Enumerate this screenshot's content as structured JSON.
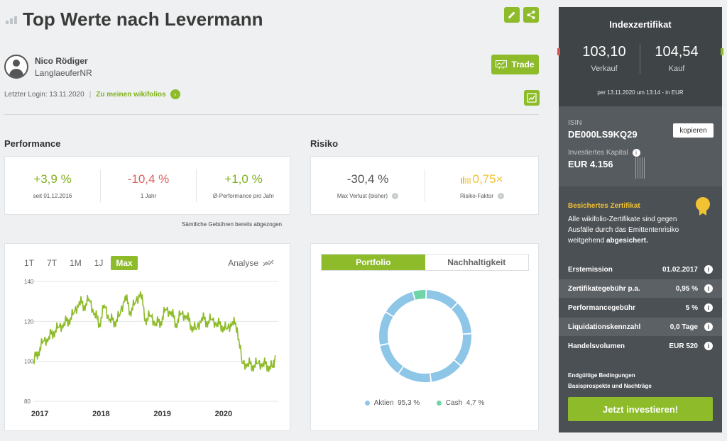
{
  "header": {
    "title": "Top Werte nach Levermann"
  },
  "author": {
    "name": "Nico Rödiger",
    "handle": "LanglaeuferNR"
  },
  "trade_label": "Trade",
  "login": {
    "text": "Letzter Login: 13.11.2020",
    "separator": "|",
    "link": "Zu meinen wikifolios"
  },
  "performance": {
    "title": "Performance",
    "items": [
      {
        "value": "+3,9 %",
        "label": "seit 01.12.2016",
        "color": "#7fb11e"
      },
      {
        "value": "-10,4 %",
        "label": "1 Jahr",
        "color": "#e06060"
      },
      {
        "value": "+1,0 %",
        "label": "Ø-Performance pro Jahr",
        "color": "#7fb11e"
      }
    ],
    "fees_note": "Sämtliche Gebühren bereits abgezogen"
  },
  "risiko": {
    "title": "Risiko",
    "max_verlust": {
      "value": "-30,4 %",
      "label": "Max Verlust (bisher)"
    },
    "faktor": {
      "value": "0,75×",
      "label": "Risiko-Faktor",
      "color": "#f1c232"
    }
  },
  "chart": {
    "tabs": [
      "1T",
      "7T",
      "1M",
      "1J",
      "Max"
    ],
    "active_tab": "Max",
    "analyse_label": "Analyse"
  },
  "chart_data": {
    "type": "line",
    "title": "",
    "xlabel": "",
    "ylabel": "",
    "x_ticks": [
      "2017",
      "2018",
      "2019",
      "2020"
    ],
    "y_ticks": [
      140,
      120,
      100,
      80
    ],
    "ylim": [
      80,
      140
    ],
    "grid": true,
    "series": [
      {
        "color": "#8dbb2a",
        "x": [
          2016.92,
          2017.0,
          2017.08,
          2017.17,
          2017.25,
          2017.33,
          2017.42,
          2017.5,
          2017.58,
          2017.67,
          2017.75,
          2017.83,
          2017.92,
          2018.0,
          2018.08,
          2018.17,
          2018.25,
          2018.33,
          2018.42,
          2018.5,
          2018.58,
          2018.67,
          2018.75,
          2018.83,
          2018.92,
          2019.0,
          2019.08,
          2019.17,
          2019.25,
          2019.33,
          2019.42,
          2019.5,
          2019.58,
          2019.67,
          2019.75,
          2019.83,
          2019.92,
          2020.0,
          2020.08,
          2020.17,
          2020.25,
          2020.33,
          2020.42,
          2020.5,
          2020.58,
          2020.67,
          2020.75,
          2020.83,
          2020.87
        ],
        "values": [
          100,
          105,
          110,
          112,
          115,
          117,
          119,
          121,
          124,
          130,
          128,
          131,
          124,
          119,
          128,
          121,
          120,
          123,
          133,
          125,
          129,
          135,
          121,
          123,
          119,
          120,
          126,
          125,
          119,
          124,
          123,
          118,
          116,
          122,
          120,
          121,
          119,
          118,
          116,
          120,
          117,
          99,
          99,
          98,
          99,
          99,
          98,
          97,
          103
        ]
      }
    ]
  },
  "portfolio": {
    "tab_active": "Portfolio",
    "tab_other": "Nachhaltigkeit",
    "legend": [
      {
        "name": "Aktien",
        "value": "95,3 %",
        "color": "#8ec6e8"
      },
      {
        "name": "Cash",
        "value": "4,7 %",
        "color": "#6fd4a8"
      }
    ]
  },
  "donut_data": {
    "type": "pie",
    "categories": [
      "Aktien",
      "Cash"
    ],
    "values": [
      95.3,
      4.7
    ]
  },
  "sidebar": {
    "title": "Indexzertifikat",
    "verkauf": {
      "value": "103,10",
      "label": "Verkauf"
    },
    "kauf": {
      "value": "104,54",
      "label": "Kauf"
    },
    "price_time": "per 13.11.2020 um 13:14 - in EUR",
    "isin_label": "ISIN",
    "isin": "DE000LS9KQ29",
    "copy_label": "kopieren",
    "kapital_label": "Investiertes Kapital",
    "kapital": "EUR 4.156",
    "gesichert_title": "Besichertes Zertifikat",
    "gesichert_text": "Alle wikifolio-Zertifikate sind gegen Ausfälle durch das Emittentenrisiko weitgehend",
    "gesichert_bold": "abgesichert.",
    "details": [
      {
        "key": "Erstemission",
        "value": "01.02.2017"
      },
      {
        "key": "Zertifikategebühr p.a.",
        "value": "0,95 %"
      },
      {
        "key": "Performancegebühr",
        "value": "5 %"
      },
      {
        "key": "Liquidationskennzahl",
        "value": "0,0 Tage"
      },
      {
        "key": "Handelsvolumen",
        "value": "EUR 520"
      }
    ],
    "link_conditions": "Endgültige Bedingungen",
    "link_prospect": "Basisprospekte und Nachträge",
    "invest_label": "Jetzt investieren!"
  }
}
